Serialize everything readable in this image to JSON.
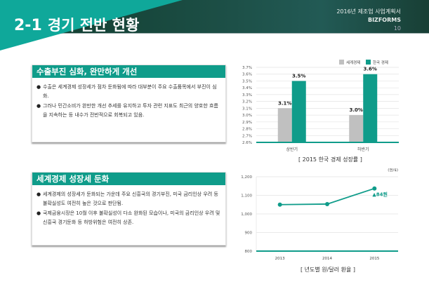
{
  "header": {
    "section_number": "2-1",
    "title": "경기 전반 현황",
    "doc_title": "2016년 제조업 사업계획서",
    "brand": "BIZFORMS",
    "page": "10"
  },
  "sections": [
    {
      "heading": "수출부진 심화, 완만하게 개선",
      "bullets": [
        "수출은 세계경제 성장세가 점차 둔화됨에 따라 대부분이 주요 수출품목에서 부진이 심화.",
        "그러나 민간소비가 완만한 개선 추세를 유지하고 투자 관련 지표도 최근의 양호한 흐름을 지속하는 등 내수가 전반적으로 회복되고 있음."
      ]
    },
    {
      "heading": "세계경제 성장세 둔화",
      "bullets": [
        "세계경제의 성장세가 둔화되는 가운데 주요 신흥국의 경기부진, 미국 금리인상 우려 등 불확실성도 여전히 높은 것으로 판단됨.",
        "국제금융시장은 10월 이후 불확실성이 다소 완화된 모습이나, 미국의 금리인상 우려 및 신흥국 경기둔화 등 하방위험은 여전히 상존."
      ]
    }
  ],
  "chart_data": [
    {
      "type": "bar",
      "title": "[ 2015 한국 경제 성장률 ]",
      "categories": [
        "상반기",
        "하반기"
      ],
      "series": [
        {
          "name": "세계경제",
          "color": "#c0c0c0",
          "values": [
            3.1,
            3.0
          ]
        },
        {
          "name": "한국 경제",
          "color": "#0f9c8a",
          "values": [
            3.5,
            3.6
          ]
        }
      ],
      "data_labels": [
        [
          "3.1%",
          "3.0%"
        ],
        [
          "3.5%",
          "3.6%"
        ]
      ],
      "yticks": [
        "3.7%",
        "3.6%",
        "3.5%",
        "3.4%",
        "3.3%",
        "3.2%",
        "3.1%",
        "3.0%",
        "2.9%",
        "2.8%",
        "2.7%",
        "2.6%"
      ],
      "ylim": [
        2.6,
        3.7
      ],
      "legend": "top-right",
      "grid": true
    },
    {
      "type": "line",
      "title": "[ 년도별 원/달러 환율 ]",
      "unit": "(원/$)",
      "x": [
        "2013",
        "2014",
        "2015"
      ],
      "series": [
        {
          "name": "원/달러 환율",
          "color": "#0f9c8a",
          "values": [
            1050,
            1053,
            1137
          ]
        }
      ],
      "annotation": "▲84원",
      "yticks": [
        "1,200",
        "1,100",
        "1,000",
        "900",
        "800"
      ],
      "ylim": [
        800,
        1200
      ],
      "grid": true
    }
  ]
}
